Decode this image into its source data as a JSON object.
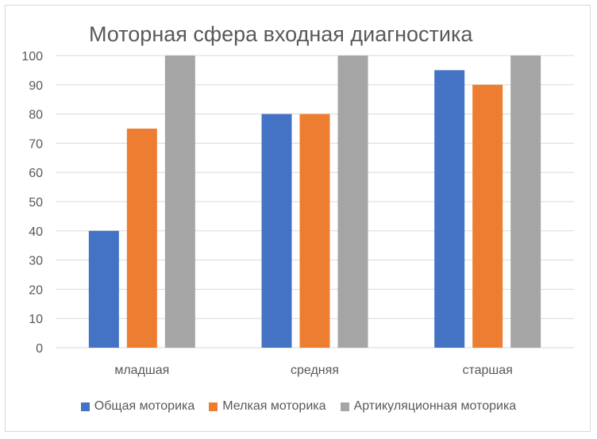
{
  "chart_data": {
    "type": "bar",
    "title": "Моторная сфера входная диагностика",
    "categories": [
      "младшая",
      "средняя",
      "старшая"
    ],
    "series": [
      {
        "name": "Общая моторика",
        "color": "#4472C4",
        "values": [
          40,
          80,
          95
        ]
      },
      {
        "name": "Мелкая моторика",
        "color": "#ED7D31",
        "values": [
          75,
          80,
          90
        ]
      },
      {
        "name": "Артикуляционная моторика",
        "color": "#A5A5A5",
        "values": [
          100,
          100,
          100
        ]
      }
    ],
    "ylim": [
      0,
      100
    ],
    "yticks": [
      0,
      10,
      20,
      30,
      40,
      50,
      60,
      70,
      80,
      90,
      100
    ],
    "grid": true,
    "legend_position": "bottom"
  }
}
